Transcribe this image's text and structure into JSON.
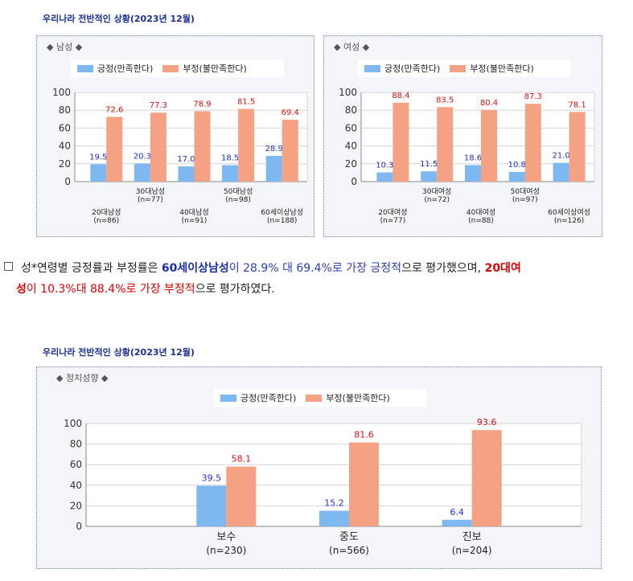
{
  "section1": {
    "title": "우리나라 전반적인 상황(2023년 12월)"
  },
  "section2": {
    "title": "우리나라 전반적인 상황(2023년 12월)"
  },
  "legend": {
    "positive": "긍정(만족한다)",
    "negative": "부정(불만족한다)"
  },
  "colors": {
    "positive": "#7db8f0",
    "negative": "#f4a184",
    "pos_label": "#1f2fd0",
    "neg_label": "#e01010"
  },
  "paragraph": {
    "lead": "성*연령별 긍정률과 부정률은 ",
    "hl1": "60세이상남성",
    "mid1": "이 28.9% 대 69.4%로 가장 ",
    "pos_word": "긍정적",
    "mid2": "으로 평가했으며, ",
    "hl2a": "20대여",
    "hl2b": "성",
    "mid3": "이 10.3%대 88.4%로 가장 ",
    "neg_word": "부정적",
    "tail": "으로 평가하였다."
  },
  "chart_data": [
    {
      "type": "bar",
      "panel_label": "◆ 남성 ◆",
      "categories": [
        "20대남성",
        "30대남성",
        "40대남성",
        "50대남성",
        "60세이상남성"
      ],
      "n_labels": [
        "(n=86)",
        "(n=77)",
        "(n=91)",
        "(n=98)",
        "(n=188)"
      ],
      "series": [
        {
          "name": "긍정(만족한다)",
          "values": [
            19.5,
            20.3,
            17.0,
            18.5,
            28.9
          ]
        },
        {
          "name": "부정(불만족한다)",
          "values": [
            72.6,
            77.3,
            78.9,
            81.5,
            69.4
          ]
        }
      ],
      "ylim": [
        0,
        100
      ],
      "yticks": [
        "0",
        "20",
        "40",
        "60",
        "80",
        "100"
      ],
      "label_texts": [
        [
          "19.5",
          "20.3",
          "17.0",
          "18.5",
          "28.9"
        ],
        [
          "72.6",
          "77.3",
          "78.9",
          "81.5",
          "69.4"
        ]
      ]
    },
    {
      "type": "bar",
      "panel_label": "◆ 여성 ◆",
      "categories": [
        "20대여성",
        "30대여성",
        "40대여성",
        "50대여성",
        "60세이상여성"
      ],
      "n_labels": [
        "(n=77)",
        "(n=72)",
        "(n=88)",
        "(n=97)",
        "(n=126)"
      ],
      "series": [
        {
          "name": "긍정(만족한다)",
          "values": [
            10.3,
            11.5,
            18.6,
            10.8,
            21.0
          ]
        },
        {
          "name": "부정(불만족한다)",
          "values": [
            88.4,
            83.5,
            80.4,
            87.3,
            78.1
          ]
        }
      ],
      "ylim": [
        0,
        100
      ],
      "yticks": [
        "0",
        "20",
        "40",
        "60",
        "80",
        "100"
      ],
      "label_texts": [
        [
          "10.3",
          "11.5",
          "18.6",
          "10.8",
          "21.0"
        ],
        [
          "88.4",
          "83.5",
          "80.4",
          "87.3",
          "78.1"
        ]
      ]
    },
    {
      "type": "bar",
      "panel_label": "◆ 정치성향 ◆",
      "categories": [
        "보수",
        "중도",
        "진보"
      ],
      "n_labels": [
        "(n=230)",
        "(n=566)",
        "(n=204)"
      ],
      "series": [
        {
          "name": "긍정(만족한다)",
          "values": [
            39.5,
            15.2,
            6.4
          ]
        },
        {
          "name": "부정(불만족한다)",
          "values": [
            58.1,
            81.6,
            93.6
          ]
        }
      ],
      "ylim": [
        0,
        100
      ],
      "yticks": [
        "0",
        "20",
        "40",
        "60",
        "80",
        "100"
      ],
      "label_texts": [
        [
          "39.5",
          "15.2",
          "6.4"
        ],
        [
          "58.1",
          "81.6",
          "93.6"
        ]
      ]
    }
  ]
}
